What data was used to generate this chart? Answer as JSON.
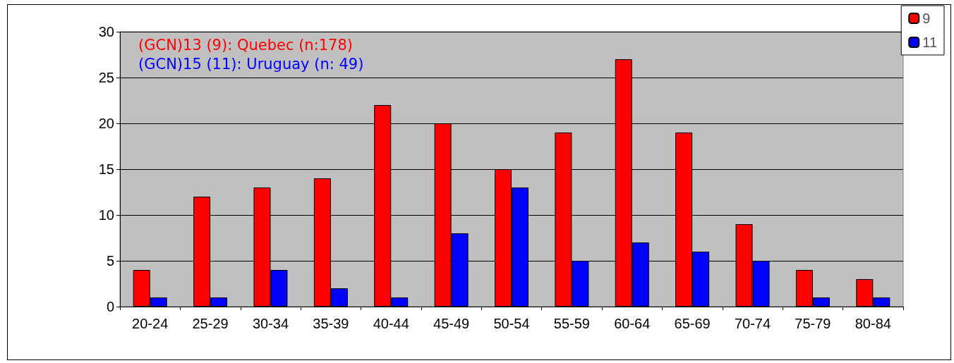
{
  "chart_data": {
    "type": "bar",
    "categories": [
      "20-24",
      "25-29",
      "30-34",
      "35-39",
      "40-44",
      "45-49",
      "50-54",
      "55-59",
      "60-64",
      "65-69",
      "70-74",
      "75-79",
      "80-84"
    ],
    "series": [
      {
        "name": "9",
        "color": "#ff0000",
        "values": [
          4,
          12,
          13,
          14,
          22,
          20,
          15,
          19,
          27,
          19,
          9,
          4,
          3
        ]
      },
      {
        "name": "11",
        "color": "#0000ff",
        "values": [
          1,
          1,
          4,
          2,
          1,
          8,
          13,
          5,
          7,
          6,
          5,
          1,
          1
        ]
      }
    ],
    "annotations": [
      "(GCN)13 (9): Quebec (n:178)",
      "(GCN)15 (11): Uruguay (n: 49)"
    ],
    "ylim": [
      0,
      30
    ],
    "yticks": [
      0,
      5,
      10,
      15,
      20,
      25,
      30
    ],
    "grid": "y",
    "legend": "top right"
  }
}
